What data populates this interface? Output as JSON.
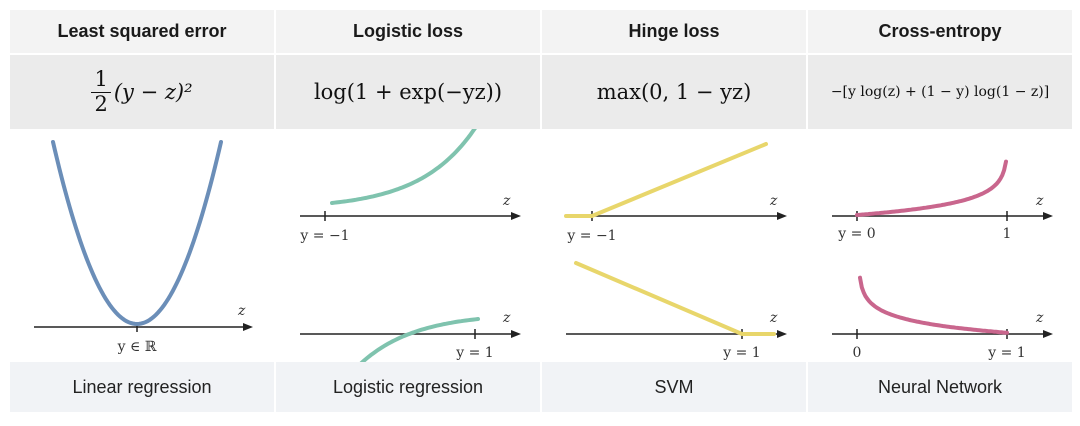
{
  "columns": [
    {
      "title": "Least squared error",
      "formula": {
        "num": "1",
        "den": "2",
        "rest": "(y − z)²"
      },
      "labels": {
        "z": "z",
        "x_mark": "y ∈ ℝ"
      },
      "footer": "Linear regression",
      "color": "#6b8eb8"
    },
    {
      "title": "Logistic loss",
      "formula": {
        "text": "log(1 + exp(−yz))"
      },
      "labels": {
        "z_top": "z",
        "mark_top": "y = −1",
        "z_bottom": "z",
        "mark_bottom": "y = 1"
      },
      "footer": "Logistic regression",
      "color": "#7fc3ae"
    },
    {
      "title": "Hinge loss",
      "formula": {
        "text": "max(0, 1 − yz)"
      },
      "labels": {
        "z_top": "z",
        "mark_top": "y = −1",
        "z_bottom": "z",
        "mark_bottom": "y = 1"
      },
      "footer": "SVM",
      "color": "#e8d66b"
    },
    {
      "title": "Cross-entropy",
      "formula": {
        "text": "−[y log(z) + (1 − y) log(1 − z)]"
      },
      "labels": {
        "z_top": "z",
        "mark_top_left": "y = 0",
        "mark_top_right": "1",
        "z_bottom": "z",
        "mark_bottom_left": "0",
        "mark_bottom_right": "y = 1"
      },
      "footer": "Neural Network",
      "color": "#c9668d"
    }
  ]
}
